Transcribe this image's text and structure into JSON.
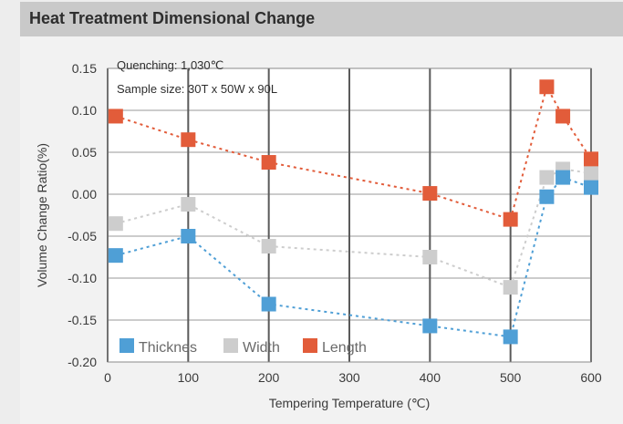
{
  "title": "Heat Treatment Dimensional Change",
  "colors": {
    "thickness": "#4f9fd6",
    "width": "#cdcdcd",
    "length": "#e25c3a",
    "grid": "#5a5a5a",
    "plot_bg": "#ffffff"
  },
  "chart_data": {
    "type": "line",
    "title": "",
    "xlabel": "Tempering Temperature (℃)",
    "ylabel": "Volume Change Ratio(%)",
    "xlim": [
      0,
      600
    ],
    "ylim": [
      -0.2,
      0.15
    ],
    "xticks": [
      "0",
      "100",
      "200",
      "300",
      "400",
      "500",
      "600"
    ],
    "yticks": [
      "0.15",
      "0.10",
      "0.05",
      "0.00",
      "-0.05",
      "-0.10",
      "-0.15",
      "-0.20"
    ],
    "annotations": [
      "Quenching: 1,030℃",
      "Sample size: 30T x 50W x 90L"
    ],
    "grid": true,
    "legend_position": "bottom-left",
    "series": [
      {
        "name": "Thicknes",
        "x": [
          10,
          100,
          200,
          400,
          500,
          545,
          565,
          600
        ],
        "y": [
          -0.073,
          -0.05,
          -0.131,
          -0.157,
          -0.17,
          -0.003,
          0.02,
          0.008
        ]
      },
      {
        "name": "Width",
        "x": [
          10,
          100,
          200,
          400,
          500,
          545,
          565,
          600
        ],
        "y": [
          -0.035,
          -0.012,
          -0.062,
          -0.075,
          -0.111,
          0.02,
          0.03,
          0.025
        ]
      },
      {
        "name": "Length",
        "x": [
          10,
          100,
          200,
          400,
          500,
          545,
          565,
          600
        ],
        "y": [
          0.093,
          0.065,
          0.038,
          0.001,
          -0.03,
          0.128,
          0.093,
          0.042
        ]
      }
    ]
  }
}
